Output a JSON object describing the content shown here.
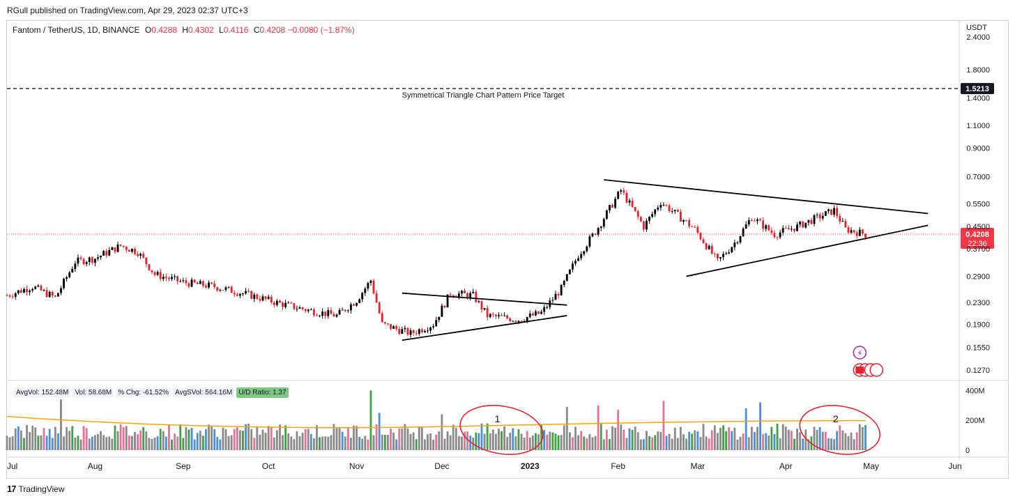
{
  "header": {
    "publisher_line": "RGull published on TradingView.com, Apr 29, 2023 02:37 UTC+3",
    "symbol": "Fantom / TetherUS, 1D, BINANCE",
    "open_label": "O",
    "open": "0.4288",
    "high_label": "H",
    "high": "0.4302",
    "low_label": "L",
    "low": "0.4116",
    "close_label": "C",
    "close": "0.4208",
    "change": "−0.0080 (−1.87%)"
  },
  "price_axis": {
    "currency": "USDT",
    "ticks": [
      "2.4000",
      "1.8000",
      "1.4000",
      "1.1000",
      "0.9000",
      "0.7000",
      "0.5500",
      "0.4500",
      "0.3700",
      "0.2900",
      "0.2300",
      "0.1900",
      "0.1550",
      "0.1270"
    ],
    "target_badge": "1.5213",
    "last_price_badge": "0.4208",
    "countdown": "22:36"
  },
  "annotations": {
    "target_label": "Symmetrical Triangle Chart Pattern Price Target",
    "circle_1": "1",
    "circle_2": "2"
  },
  "volume_legend": {
    "avg_vol": "AvgVol: 152.48M",
    "vol": "Vol: 58.68M",
    "chg": "% Chg: -61.52%",
    "avg_svol": "AvgSVol: 564.16M",
    "ud_ratio": "U/D Ratio: 1.37"
  },
  "volume_axis": {
    "ticks": [
      "400M",
      "200M",
      "0"
    ]
  },
  "time_axis": {
    "ticks": [
      "Jul",
      "Aug",
      "Sep",
      "Oct",
      "Nov",
      "Dec",
      "2023",
      "Feb",
      "Mar",
      "Apr",
      "May",
      "Jun"
    ]
  },
  "footer": {
    "brand": "TradingView"
  },
  "colors": {
    "up": "#000000",
    "down": "#e0242e",
    "target_line": "#000000",
    "last_price": "#f23645",
    "avg_line": "#f7a600",
    "circle": "#e0242e",
    "vol_green": "#43a047",
    "vol_pink": "#e57399",
    "vol_blue": "#4a90d9",
    "vol_gray": "#8a8a8a"
  },
  "chart_data": [
    {
      "type": "candlestick",
      "title": "Fantom / TetherUS, 1D, BINANCE",
      "scale": "log",
      "ylim": [
        0.12,
        2.6
      ],
      "ylabel": "USDT",
      "x_range": [
        "2022-07-01",
        "2023-06-01"
      ],
      "path_points": [
        {
          "date": "2022-07-01",
          "price": 0.245
        },
        {
          "date": "2022-07-10",
          "price": 0.265
        },
        {
          "date": "2022-07-18",
          "price": 0.24
        },
        {
          "date": "2022-07-25",
          "price": 0.33
        },
        {
          "date": "2022-08-01",
          "price": 0.34
        },
        {
          "date": "2022-08-10",
          "price": 0.38
        },
        {
          "date": "2022-08-16",
          "price": 0.36
        },
        {
          "date": "2022-08-22",
          "price": 0.295
        },
        {
          "date": "2022-09-01",
          "price": 0.275
        },
        {
          "date": "2022-09-12",
          "price": 0.265
        },
        {
          "date": "2022-09-25",
          "price": 0.245
        },
        {
          "date": "2022-10-05",
          "price": 0.228
        },
        {
          "date": "2022-10-15",
          "price": 0.215
        },
        {
          "date": "2022-10-25",
          "price": 0.205
        },
        {
          "date": "2022-11-01",
          "price": 0.235
        },
        {
          "date": "2022-11-06",
          "price": 0.28
        },
        {
          "date": "2022-11-10",
          "price": 0.19
        },
        {
          "date": "2022-11-20",
          "price": 0.175
        },
        {
          "date": "2022-11-28",
          "price": 0.19
        },
        {
          "date": "2022-12-04",
          "price": 0.25
        },
        {
          "date": "2022-12-12",
          "price": 0.245
        },
        {
          "date": "2022-12-17",
          "price": 0.205
        },
        {
          "date": "2022-12-28",
          "price": 0.198
        },
        {
          "date": "2023-01-05",
          "price": 0.21
        },
        {
          "date": "2023-01-12",
          "price": 0.26
        },
        {
          "date": "2023-01-18",
          "price": 0.35
        },
        {
          "date": "2023-01-24",
          "price": 0.43
        },
        {
          "date": "2023-02-02",
          "price": 0.62
        },
        {
          "date": "2023-02-10",
          "price": 0.45
        },
        {
          "date": "2023-02-16",
          "price": 0.56
        },
        {
          "date": "2023-02-28",
          "price": 0.44
        },
        {
          "date": "2023-03-08",
          "price": 0.33
        },
        {
          "date": "2023-03-14",
          "price": 0.39
        },
        {
          "date": "2023-03-20",
          "price": 0.49
        },
        {
          "date": "2023-03-28",
          "price": 0.42
        },
        {
          "date": "2023-04-05",
          "price": 0.45
        },
        {
          "date": "2023-04-18",
          "price": 0.52
        },
        {
          "date": "2023-04-22",
          "price": 0.44
        },
        {
          "date": "2023-04-29",
          "price": 0.4208
        }
      ],
      "reference_lines": [
        {
          "price": 1.5213,
          "style": "dashed",
          "label": "Symmetrical Triangle Chart Pattern Price Target"
        },
        {
          "price": 0.4208,
          "style": "dotted"
        }
      ],
      "trendlines": [
        {
          "from": {
            "date": "2022-11-17",
            "price": 0.25
          },
          "to": {
            "date": "2023-01-14",
            "price": 0.225
          }
        },
        {
          "from": {
            "date": "2022-11-17",
            "price": 0.165
          },
          "to": {
            "date": "2023-01-14",
            "price": 0.205
          }
        },
        {
          "from": {
            "date": "2023-01-27",
            "price": 0.68
          },
          "to": {
            "date": "2023-05-21",
            "price": 0.505
          }
        },
        {
          "from": {
            "date": "2023-02-25",
            "price": 0.29
          },
          "to": {
            "date": "2023-05-21",
            "price": 0.455
          }
        }
      ]
    },
    {
      "type": "bar",
      "title": "Volume",
      "ylim": [
        0,
        420
      ],
      "ylabel": "M",
      "x_range": [
        "2022-07-01",
        "2023-06-01"
      ],
      "avg_line_level": 170,
      "spikes": [
        {
          "date": "2022-07-20",
          "value": 340
        },
        {
          "date": "2022-11-06",
          "value": 400
        },
        {
          "date": "2022-11-09",
          "value": 250
        },
        {
          "date": "2022-12-01",
          "value": 240
        },
        {
          "date": "2023-01-14",
          "value": 290
        },
        {
          "date": "2023-01-25",
          "value": 300
        },
        {
          "date": "2023-02-01",
          "value": 270
        },
        {
          "date": "2023-02-17",
          "value": 330
        },
        {
          "date": "2023-03-18",
          "value": 280
        },
        {
          "date": "2023-03-23",
          "value": 320
        }
      ]
    }
  ]
}
